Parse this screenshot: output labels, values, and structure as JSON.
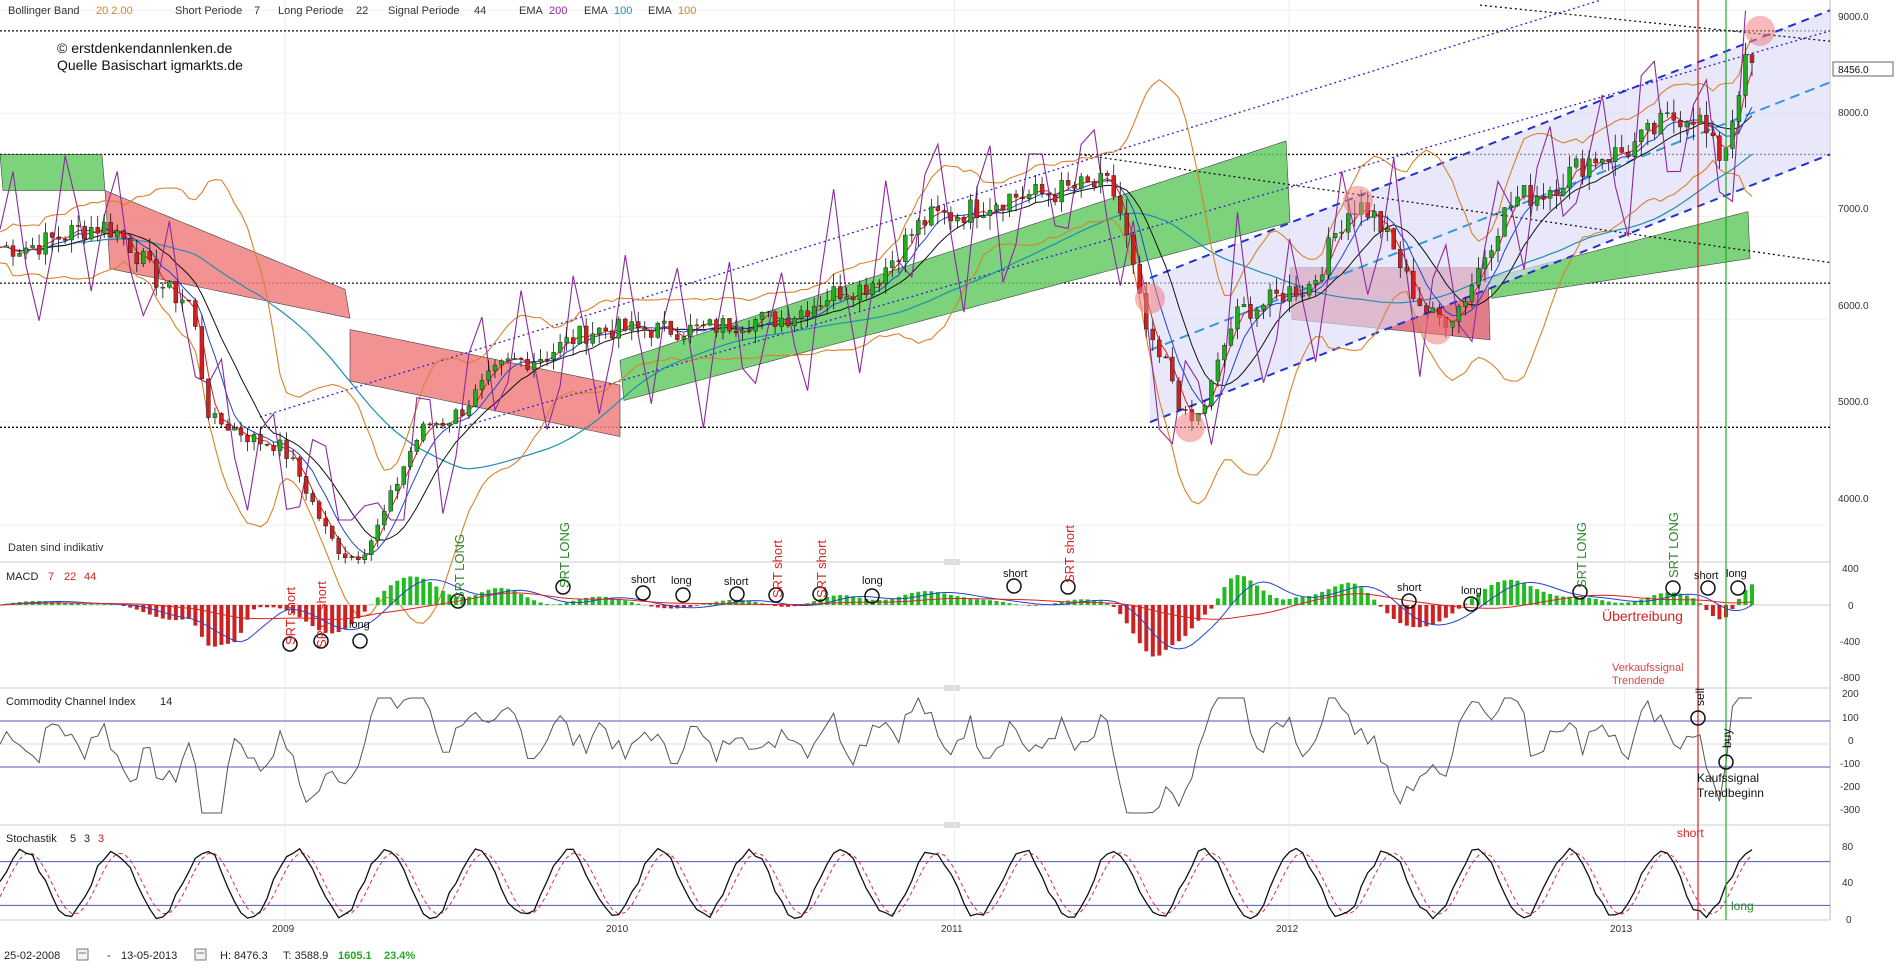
{
  "legend": {
    "items": [
      {
        "label": "Bollinger Band",
        "params": "20  2.00",
        "color": "#d9822b"
      },
      {
        "label": "Short Periode",
        "params": "7",
        "color": "#555555"
      },
      {
        "label": "Long Periode",
        "params": "22",
        "color": "#555555"
      },
      {
        "label": "Signal Periode",
        "params": "44",
        "color": "#555555"
      },
      {
        "label": "EMA",
        "params": "200",
        "color": "#8b2a9c"
      },
      {
        "label": "EMA",
        "params": "100",
        "color": "#1f8fb0"
      },
      {
        "label": "EMA",
        "params": "100",
        "color": "#d9822b"
      }
    ]
  },
  "copyright": "© erstdenkendannlenken.de",
  "source": "Quelle Basischart igmarkts.de",
  "disclaimer": "Daten sind indikativ",
  "price_axis": {
    "ticks": [
      "9000.0",
      "8000.0",
      "7000.0",
      "6000.0",
      "5000.0",
      "4000.0"
    ],
    "current": "8456.0"
  },
  "macd": {
    "label": "MACD",
    "params": [
      "7",
      "22",
      "44"
    ],
    "ticks": [
      "400",
      "0",
      "-400",
      "-800"
    ]
  },
  "cci": {
    "label": "Commodity Channel Index",
    "params": "14",
    "ticks": [
      "200",
      "100",
      "0",
      "-100",
      "-200",
      "-300"
    ]
  },
  "stoch": {
    "label": "Stochastik",
    "params": [
      "5",
      "3",
      "3"
    ],
    "ticks": [
      "80",
      "40",
      "0"
    ]
  },
  "x_axis": {
    "years": [
      "2009",
      "2010",
      "2011",
      "2012",
      "2013"
    ]
  },
  "annotations": {
    "srt_short": "SRT short",
    "srt": "SRT",
    "srt_long": "SRT LONG",
    "short": "short",
    "long": "long",
    "uebertreibung": "Übertreibung",
    "verkaufssignal": "Verkaufssignal",
    "trendende": "Trendende",
    "sell": "sell",
    "buy": "buy",
    "kaufsignal": "Kaufssignal",
    "trendbeginn": "Trendbeginn"
  },
  "status_bar": {
    "start_date": "25-02-2008",
    "dash": "-",
    "end_date": "13-05-2013",
    "high": "H: 8476.3",
    "low": "T: 3588.9",
    "change": "1605.1",
    "change_pct": "23.4%"
  },
  "chart_data": {
    "type": "line",
    "title": "",
    "x_range": [
      "2008-02-25",
      "2013-05-13"
    ],
    "ylim": [
      3700,
      9100
    ],
    "price_series": {
      "name": "",
      "x": [
        "2008-03",
        "2008-06",
        "2008-09",
        "2008-10",
        "2008-12",
        "2009-03",
        "2009-06",
        "2009-09",
        "2009-12",
        "2010-03",
        "2010-06",
        "2010-09",
        "2010-12",
        "2011-03",
        "2011-06",
        "2011-08",
        "2011-09",
        "2011-11",
        "2012-01",
        "2012-03",
        "2012-06",
        "2012-09",
        "2012-12",
        "2013-03",
        "2013-04",
        "2013-05"
      ],
      "y": [
        6700,
        6900,
        6200,
        5000,
        4800,
        3700,
        5000,
        5600,
        5900,
        5900,
        6000,
        6300,
        7000,
        7200,
        7300,
        5600,
        5000,
        6100,
        6300,
        7100,
        6000,
        7200,
        7600,
        8000,
        7600,
        8456
      ]
    },
    "horizontal_levels": [
      8800,
      7600,
      6350,
      4950
    ],
    "macd_ylim": [
      -850,
      450
    ],
    "cci_ylim": [
      -320,
      230
    ],
    "stoch_ylim": [
      0,
      100
    ],
    "stoch_levels": [
      80,
      20
    ]
  }
}
